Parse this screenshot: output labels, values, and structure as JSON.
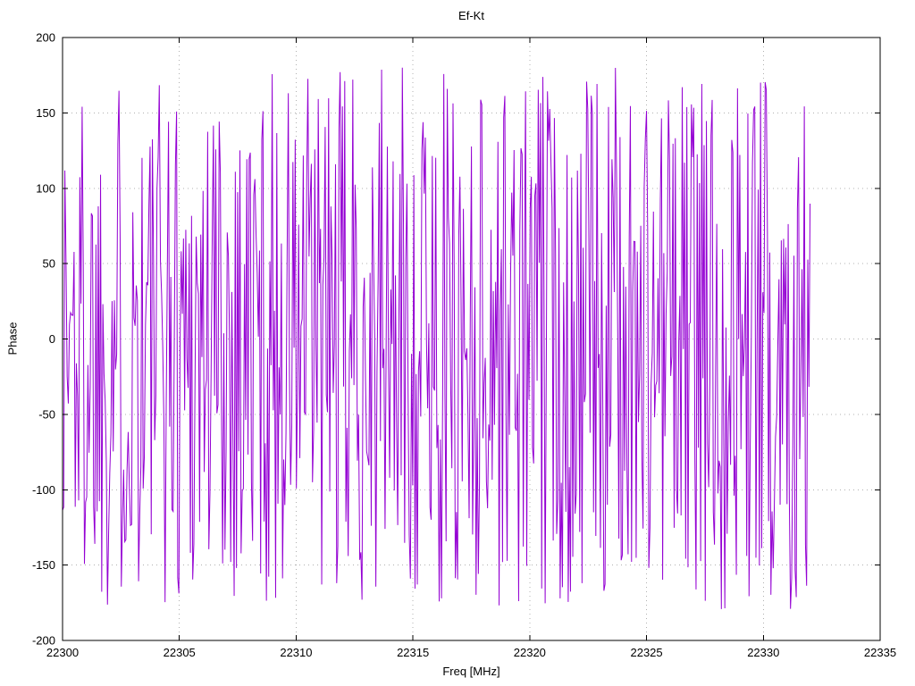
{
  "chart_data": {
    "type": "line",
    "title": "Ef-Kt",
    "xlabel": "Freq [MHz]",
    "ylabel": "Phase",
    "xlim": [
      22300,
      22335
    ],
    "ylim": [
      -200,
      200
    ],
    "x_ticks": [
      22300,
      22305,
      22310,
      22315,
      22320,
      22325,
      22330,
      22335
    ],
    "y_ticks": [
      -200,
      -150,
      -100,
      -50,
      0,
      50,
      100,
      150,
      200
    ],
    "grid": "dotted",
    "legend": "none",
    "colors": {
      "trace": "#9400d3",
      "grid": "#b0b0b0",
      "border": "#000000"
    },
    "series": [
      {
        "name": "phase",
        "color": "#9400d3",
        "style": "line",
        "x_start": 22300,
        "x_end": 22332,
        "points": 650,
        "y_model": "wrapped-phase-uniform-random",
        "y_range": [
          -180,
          180
        ],
        "seed": 1337
      }
    ]
  }
}
